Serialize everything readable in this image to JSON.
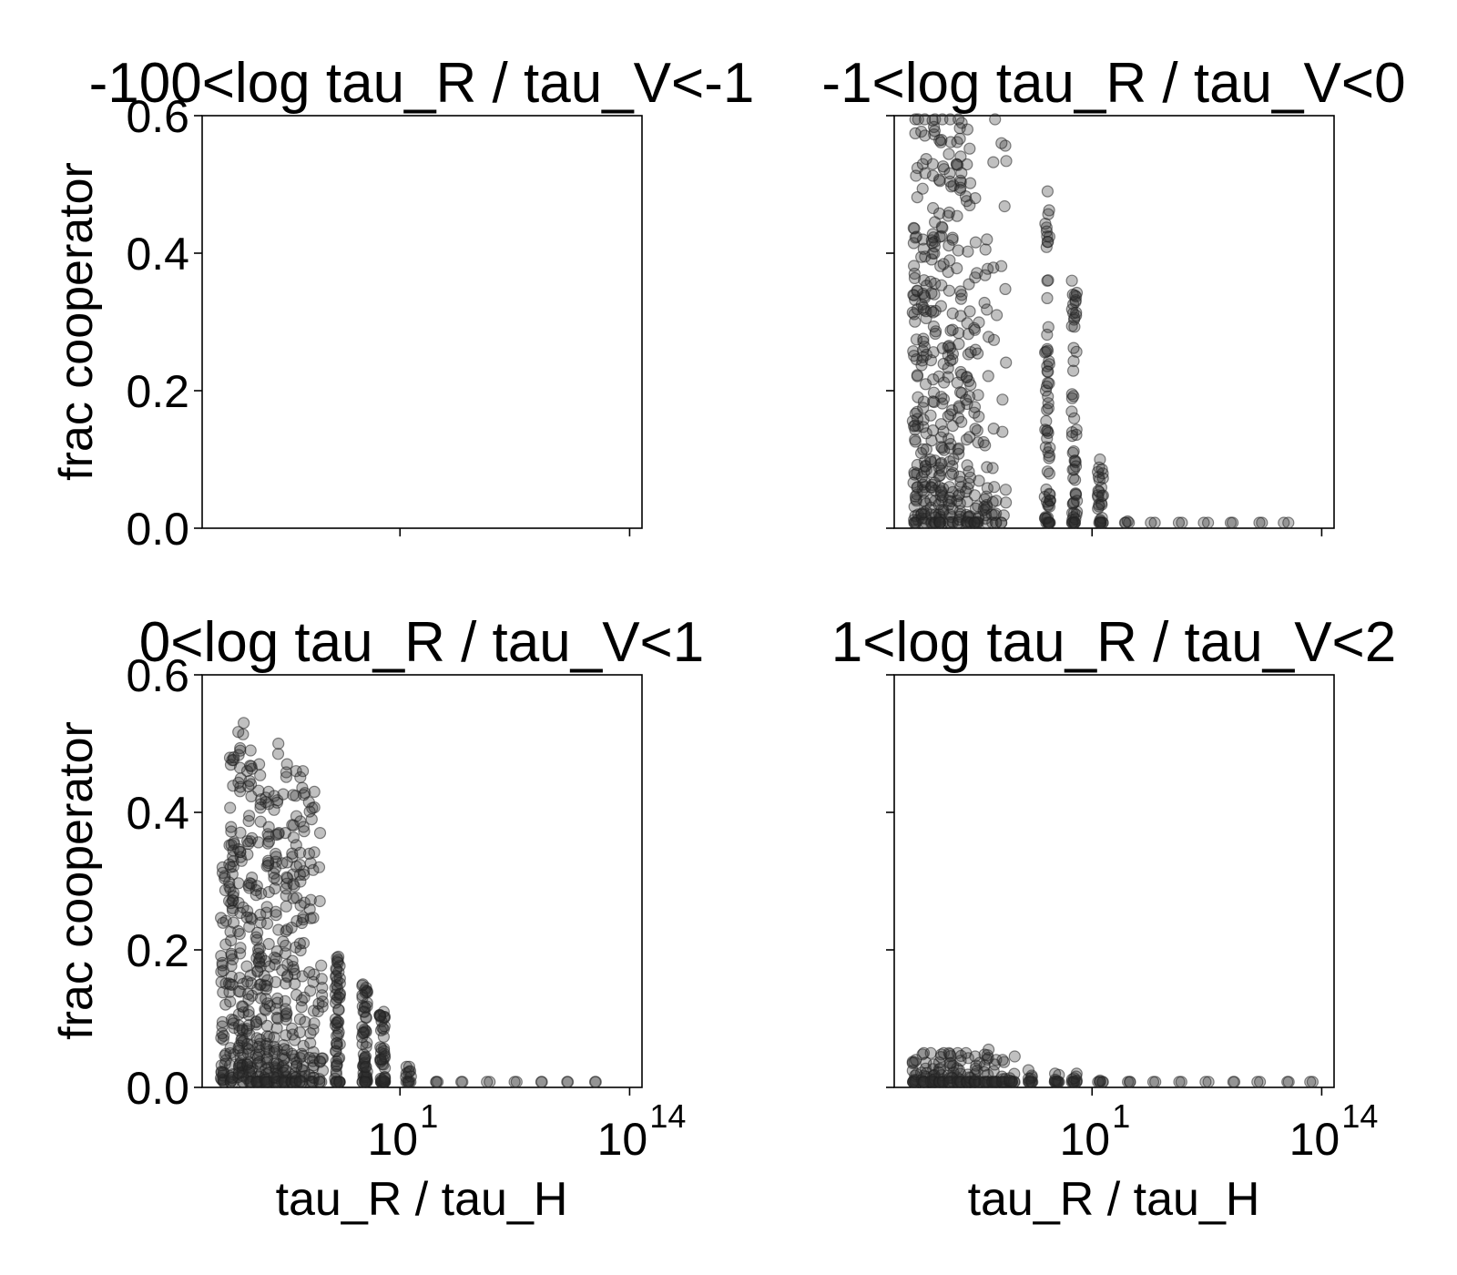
{
  "chart_data": [
    {
      "type": "scatter",
      "title": "-100<log tau_R / tau_V<-1",
      "xlabel": "",
      "ylabel": "frac cooperator",
      "xscale": "log",
      "ylim": [
        0,
        0.6
      ],
      "yticks": [
        "0.0",
        "0.2",
        "0.4",
        "0.6"
      ],
      "xticks": [],
      "columns": []
    },
    {
      "type": "scatter",
      "title": "-1<log tau_R / tau_V<0",
      "xlabel": "",
      "ylabel": "",
      "xscale": "log",
      "ylim": [
        0,
        0.6
      ],
      "yticks": [],
      "xticks": [],
      "columns": [
        {
          "x": 1e-09,
          "max": 0.6,
          "n": 60
        },
        {
          "x": 3e-09,
          "max": 0.6,
          "n": 60
        },
        {
          "x": 1e-08,
          "max": 0.6,
          "n": 58
        },
        {
          "x": 3e-08,
          "max": 0.6,
          "n": 56
        },
        {
          "x": 1e-07,
          "max": 0.6,
          "n": 52
        },
        {
          "x": 3e-07,
          "max": 0.6,
          "n": 48
        },
        {
          "x": 1e-06,
          "max": 0.58,
          "n": 40
        },
        {
          "x": 3e-06,
          "max": 0.48,
          "n": 30
        },
        {
          "x": 1e-05,
          "max": 0.42,
          "n": 22
        },
        {
          "x": 3e-05,
          "max": 0.6,
          "n": 16
        },
        {
          "x": 0.0001,
          "max": 0.56,
          "n": 14
        },
        {
          "x": 0.03,
          "max": 0.49,
          "n": 70
        },
        {
          "x": 1,
          "max": 0.36,
          "n": 60
        },
        {
          "x": 30,
          "max": 0.1,
          "n": 30
        },
        {
          "x": 1000.0,
          "max": 0.01,
          "n": 4
        },
        {
          "x": 30000.0,
          "max": 0.003,
          "n": 2
        },
        {
          "x": 1000000.0,
          "max": 0.003,
          "n": 2
        },
        {
          "x": 30000000.0,
          "max": 0.003,
          "n": 2
        },
        {
          "x": 1000000000.0,
          "max": 0.003,
          "n": 2
        },
        {
          "x": 30000000000.0,
          "max": 0.003,
          "n": 2
        },
        {
          "x": 1000000000000.0,
          "max": 0.003,
          "n": 2
        }
      ]
    },
    {
      "type": "scatter",
      "title": "0<log tau_R / tau_V<1",
      "xlabel": "tau_R / tau_H",
      "ylabel": "frac cooperator",
      "xscale": "log",
      "ylim": [
        0,
        0.6
      ],
      "yticks": [
        "0.0",
        "0.2",
        "0.4",
        "0.6"
      ],
      "xticks": [
        {
          "base": "10",
          "exp": "1"
        },
        {
          "base": "10",
          "exp": "14"
        }
      ],
      "columns": [
        {
          "x": 1e-09,
          "max": 0.32,
          "n": 40
        },
        {
          "x": 3e-09,
          "max": 0.48,
          "n": 60
        },
        {
          "x": 1e-08,
          "max": 0.53,
          "n": 62
        },
        {
          "x": 3e-08,
          "max": 0.49,
          "n": 60
        },
        {
          "x": 1e-07,
          "max": 0.47,
          "n": 58
        },
        {
          "x": 3e-07,
          "max": 0.43,
          "n": 55
        },
        {
          "x": 1e-06,
          "max": 0.5,
          "n": 52
        },
        {
          "x": 3e-06,
          "max": 0.47,
          "n": 50
        },
        {
          "x": 1e-05,
          "max": 0.46,
          "n": 46
        },
        {
          "x": 3e-05,
          "max": 0.46,
          "n": 42
        },
        {
          "x": 0.0001,
          "max": 0.43,
          "n": 36
        },
        {
          "x": 0.0003,
          "max": 0.37,
          "n": 20
        },
        {
          "x": 0.003,
          "max": 0.19,
          "n": 60
        },
        {
          "x": 0.1,
          "max": 0.15,
          "n": 60
        },
        {
          "x": 1,
          "max": 0.11,
          "n": 50
        },
        {
          "x": 30,
          "max": 0.03,
          "n": 14
        },
        {
          "x": 1000.0,
          "max": 0.006,
          "n": 3
        },
        {
          "x": 30000.0,
          "max": 0.003,
          "n": 2
        },
        {
          "x": 1000000.0,
          "max": 0.003,
          "n": 2
        },
        {
          "x": 30000000.0,
          "max": 0.003,
          "n": 2
        },
        {
          "x": 1000000000.0,
          "max": 0.003,
          "n": 2
        },
        {
          "x": 30000000000.0,
          "max": 0.003,
          "n": 2
        },
        {
          "x": 1000000000000.0,
          "max": 0.003,
          "n": 2
        }
      ]
    },
    {
      "type": "scatter",
      "title": "1<log tau_R / tau_V<2",
      "xlabel": "tau_R / tau_H",
      "ylabel": "",
      "xscale": "log",
      "ylim": [
        0,
        0.6
      ],
      "yticks": [],
      "xticks": [
        {
          "base": "10",
          "exp": "1"
        },
        {
          "base": "10",
          "exp": "14"
        }
      ],
      "columns": [
        {
          "x": 1e-09,
          "max": 0.04,
          "n": 16
        },
        {
          "x": 3e-09,
          "max": 0.05,
          "n": 18
        },
        {
          "x": 1e-08,
          "max": 0.05,
          "n": 18
        },
        {
          "x": 3e-08,
          "max": 0.05,
          "n": 18
        },
        {
          "x": 1e-07,
          "max": 0.05,
          "n": 18
        },
        {
          "x": 3e-07,
          "max": 0.05,
          "n": 16
        },
        {
          "x": 1e-06,
          "max": 0.05,
          "n": 16
        },
        {
          "x": 3e-06,
          "max": 0.045,
          "n": 16
        },
        {
          "x": 1e-05,
          "max": 0.055,
          "n": 16
        },
        {
          "x": 3e-05,
          "max": 0.04,
          "n": 14
        },
        {
          "x": 0.0001,
          "max": 0.04,
          "n": 12
        },
        {
          "x": 0.0003,
          "max": 0.045,
          "n": 12
        },
        {
          "x": 0.003,
          "max": 0.025,
          "n": 12
        },
        {
          "x": 0.1,
          "max": 0.02,
          "n": 12
        },
        {
          "x": 1,
          "max": 0.02,
          "n": 12
        },
        {
          "x": 30,
          "max": 0.01,
          "n": 6
        },
        {
          "x": 1000.0,
          "max": 0.005,
          "n": 3
        },
        {
          "x": 30000.0,
          "max": 0.003,
          "n": 2
        },
        {
          "x": 1000000.0,
          "max": 0.003,
          "n": 2
        },
        {
          "x": 30000000.0,
          "max": 0.003,
          "n": 2
        },
        {
          "x": 1000000000.0,
          "max": 0.003,
          "n": 2
        },
        {
          "x": 30000000000.0,
          "max": 0.003,
          "n": 2
        },
        {
          "x": 1000000000000.0,
          "max": 0.003,
          "n": 2
        },
        {
          "x": 30000000000000.0,
          "max": 0.003,
          "n": 2
        }
      ]
    }
  ]
}
